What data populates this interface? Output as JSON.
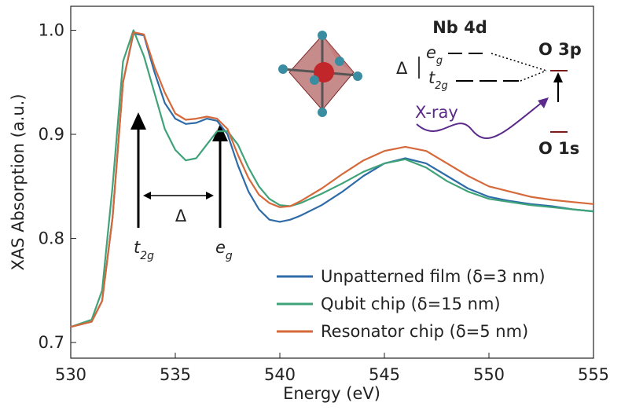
{
  "chart_data": {
    "type": "line",
    "x_label": "Energy (eV)",
    "y_label": "XAS Absorption (a.u.)",
    "x": [
      530,
      531,
      531.5,
      532,
      532.5,
      533,
      533.5,
      534,
      534.5,
      535,
      535.5,
      536,
      536.5,
      537,
      537.5,
      538,
      538.5,
      539,
      539.5,
      540,
      540.5,
      541,
      542,
      543,
      544,
      545,
      546,
      547,
      548,
      549,
      550,
      551,
      552,
      553,
      554,
      555
    ],
    "series": [
      {
        "name": "Unpatterned film (δ=3 nm)",
        "color": "#2e6ca8",
        "values": [
          0.715,
          0.72,
          0.74,
          0.82,
          0.95,
          0.997,
          0.995,
          0.96,
          0.93,
          0.915,
          0.91,
          0.911,
          0.915,
          0.913,
          0.9,
          0.87,
          0.845,
          0.828,
          0.818,
          0.816,
          0.818,
          0.822,
          0.832,
          0.845,
          0.86,
          0.872,
          0.877,
          0.872,
          0.86,
          0.848,
          0.84,
          0.836,
          0.833,
          0.831,
          0.828,
          0.826
        ]
      },
      {
        "name": "Qubit chip (δ=15 nm)",
        "color": "#3fa37a",
        "values": [
          0.715,
          0.722,
          0.75,
          0.85,
          0.97,
          1.0,
          0.975,
          0.94,
          0.905,
          0.885,
          0.875,
          0.877,
          0.89,
          0.903,
          0.903,
          0.89,
          0.868,
          0.85,
          0.838,
          0.832,
          0.831,
          0.834,
          0.843,
          0.853,
          0.864,
          0.872,
          0.876,
          0.868,
          0.855,
          0.845,
          0.838,
          0.835,
          0.832,
          0.83,
          0.828,
          0.826
        ]
      },
      {
        "name": "Resonator chip (δ=5 nm)",
        "color": "#d5693a",
        "values": [
          0.715,
          0.72,
          0.74,
          0.82,
          0.95,
          0.998,
          0.996,
          0.965,
          0.94,
          0.92,
          0.914,
          0.915,
          0.917,
          0.915,
          0.905,
          0.88,
          0.858,
          0.842,
          0.834,
          0.83,
          0.831,
          0.836,
          0.848,
          0.862,
          0.875,
          0.884,
          0.888,
          0.884,
          0.872,
          0.86,
          0.85,
          0.845,
          0.84,
          0.837,
          0.835,
          0.833
        ]
      }
    ],
    "xlim": [
      530,
      555
    ],
    "xticks": [
      530,
      535,
      540,
      545,
      550,
      555
    ],
    "ylim": [
      0.685,
      1.023
    ],
    "yticks": [
      0.7,
      0.8,
      0.9,
      {
        "value": 1,
        "label": "1.0"
      }
    ],
    "legend": "lower right",
    "annotations": {
      "t2g": "t",
      "t2g_sub": "2g",
      "eg": "e",
      "eg_sub": "g",
      "delta": "Δ"
    },
    "inset": {
      "nb": "Nb 4d",
      "o3p": "O 3p",
      "o1s": "O 1s",
      "xray": "X-ray",
      "delta": "Δ",
      "eg": "e",
      "eg_sub": "g",
      "t2g": "t",
      "t2g_sub": "2g"
    }
  }
}
